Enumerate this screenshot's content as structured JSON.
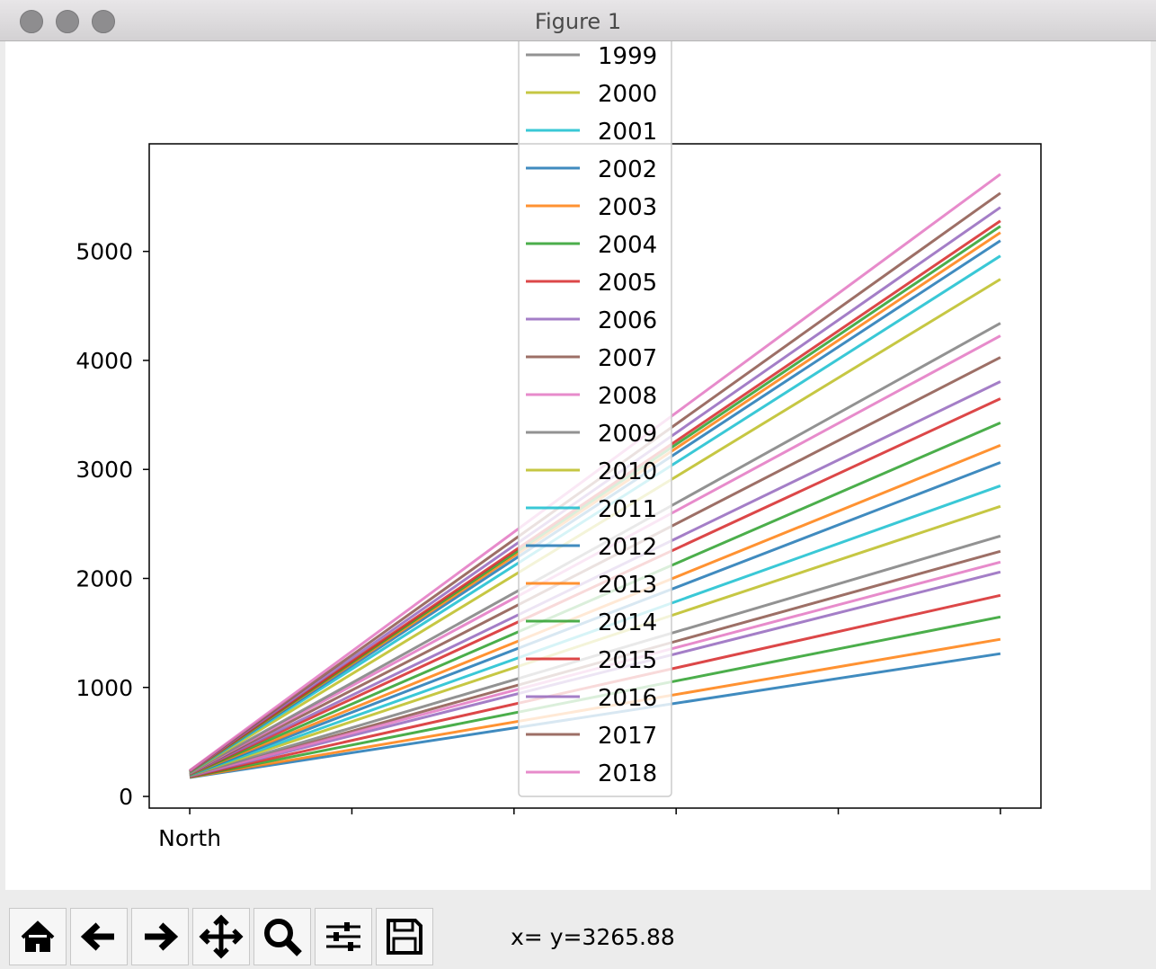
{
  "window": {
    "title": "Figure 1",
    "status": "x= y=3265.88"
  },
  "chart_data": {
    "type": "line",
    "x": [
      0,
      5
    ],
    "xlim": [
      -0.25,
      5.25
    ],
    "xticks": [
      {
        "value": 0,
        "label": "North"
      },
      {
        "value": 1,
        "label": null
      },
      {
        "value": 2,
        "label": null
      },
      {
        "value": 3,
        "label": null
      },
      {
        "value": 4,
        "label": null
      },
      {
        "value": 5,
        "label": null
      }
    ],
    "ylim": [
      -107,
      5987
    ],
    "yticks": [
      0,
      1000,
      2000,
      3000,
      4000,
      5000
    ],
    "legend": "upper center",
    "series": [
      {
        "color": "#1f77b4",
        "values": [
          173,
          1310
        ]
      },
      {
        "color": "#ff7f0e",
        "values": [
          176,
          1442
        ]
      },
      {
        "color": "#2ca02c",
        "values": [
          178,
          1647
        ]
      },
      {
        "color": "#d62728",
        "values": [
          181,
          1845
        ]
      },
      {
        "color": "#9467bd",
        "values": [
          183,
          2059
        ]
      },
      {
        "color": "#8c564b",
        "values": [
          186,
          2249
        ]
      },
      {
        "color": "#e377c2",
        "values": [
          188,
          2150
        ]
      },
      {
        "name": "1999",
        "color": "#7f7f7f",
        "values": [
          191,
          2389
        ]
      },
      {
        "name": "2000",
        "color": "#bcbd22",
        "values": [
          193,
          2661
        ]
      },
      {
        "name": "2001",
        "color": "#17becf",
        "values": [
          196,
          2850
        ]
      },
      {
        "name": "2002",
        "color": "#1f77b4",
        "values": [
          198,
          3064
        ]
      },
      {
        "name": "2003",
        "color": "#ff7f0e",
        "values": [
          201,
          3221
        ]
      },
      {
        "name": "2004",
        "color": "#2ca02c",
        "values": [
          203,
          3427
        ]
      },
      {
        "name": "2005",
        "color": "#d62728",
        "values": [
          206,
          3649
        ]
      },
      {
        "name": "2006",
        "color": "#9467bd",
        "values": [
          208,
          3806
        ]
      },
      {
        "name": "2007",
        "color": "#8c564b",
        "values": [
          211,
          4028
        ]
      },
      {
        "name": "2008",
        "color": "#e377c2",
        "values": [
          213,
          4226
        ]
      },
      {
        "name": "2009",
        "color": "#7f7f7f",
        "values": [
          216,
          4341
        ]
      },
      {
        "name": "2010",
        "color": "#bcbd22",
        "values": [
          218,
          4745
        ]
      },
      {
        "name": "2011",
        "color": "#17becf",
        "values": [
          221,
          4959
        ]
      },
      {
        "name": "2012",
        "color": "#1f77b4",
        "values": [
          223,
          5099
        ]
      },
      {
        "name": "2013",
        "color": "#ff7f0e",
        "values": [
          226,
          5173
        ]
      },
      {
        "name": "2014",
        "color": "#2ca02c",
        "values": [
          228,
          5231
        ]
      },
      {
        "name": "2015",
        "color": "#d62728",
        "values": [
          231,
          5280
        ]
      },
      {
        "name": "2016",
        "color": "#9467bd",
        "values": [
          233,
          5404
        ]
      },
      {
        "name": "2017",
        "color": "#8c564b",
        "values": [
          236,
          5535
        ]
      },
      {
        "name": "2018",
        "color": "#e377c2",
        "values": [
          238,
          5708
        ]
      }
    ]
  }
}
